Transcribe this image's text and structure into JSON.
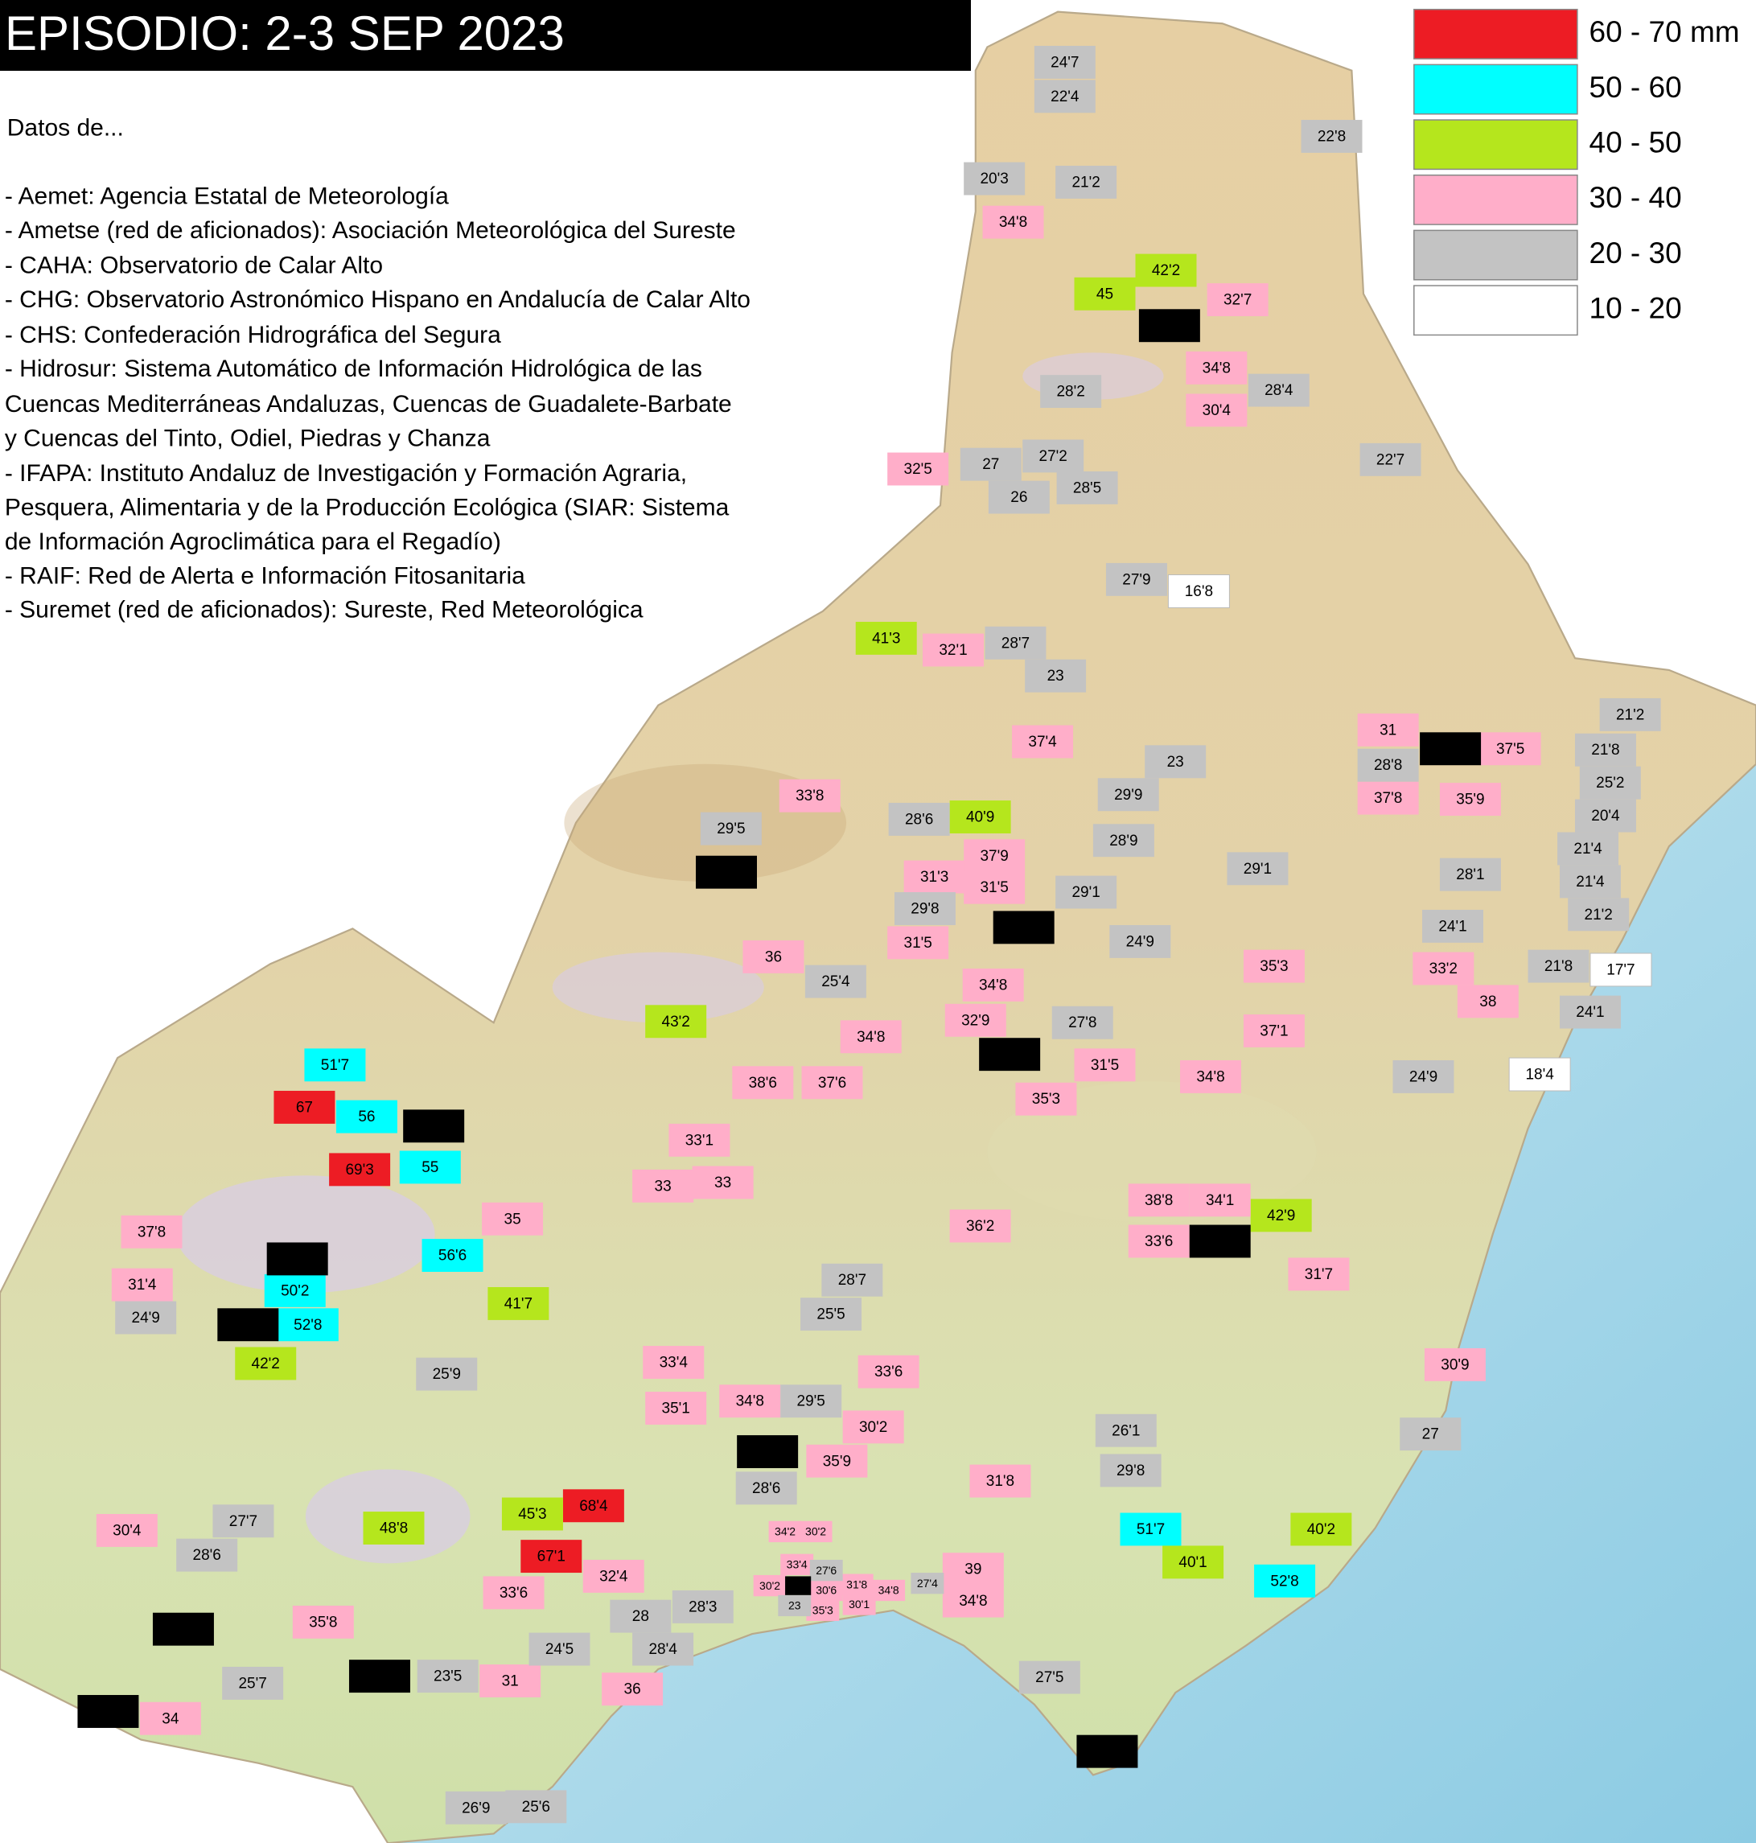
{
  "title": "EPISODIO: 2-3 SEP 2023",
  "sources": {
    "intro": "Datos de...",
    "lines": [
      "- Aemet: Agencia Estatal de Meteorología",
      "- Ametse (red de aficionados): Asociación Meteorológica del Sureste",
      "- CAHA: Observatorio de Calar Alto",
      "- CHG: Observatorio Astronómico Hispano en Andalucía de Calar Alto",
      "- CHS: Confederación Hidrográfica del Segura",
      "- Hidrosur: Sistema Automático de Información Hidrológica de las",
      "  Cuencas Mediterráneas Andaluzas, Cuencas de Guadalete-Barbate",
      "  y Cuencas del Tinto, Odiel, Piedras y Chanza",
      "- IFAPA: Instituto Andaluz de Investigación y Formación Agraria,",
      "  Pesquera, Alimentaria y de la Producción Ecológica (SIAR: Sistema",
      "  de Información Agroclimática para el Regadío)",
      "- RAIF: Red de Alerta e Información Fitosanitaria",
      "- Suremet (red de aficionados): Sureste, Red Meteorológica"
    ]
  },
  "legend": {
    "items": [
      {
        "label": "60 - 70 mm",
        "color": "#ed1c24",
        "stations": [
          "67",
          "69'3",
          "68'4",
          "67'1"
        ]
      },
      {
        "label": "50 - 60",
        "color": "#00ffff",
        "stations": [
          "51'7",
          "56",
          "55",
          "56'6",
          "50'2",
          "52'8",
          "51'7",
          "52'8"
        ]
      },
      {
        "label": "40 - 50",
        "color": "#b5e61d",
        "stations": [
          "42'2",
          "45",
          "41'3",
          "40'9",
          "43'2",
          "42'9",
          "41'7",
          "42'2",
          "45'3",
          "48'8",
          "40'2",
          "40'1"
        ]
      },
      {
        "label": "30 - 40",
        "color": "#ffaec9",
        "stations": [
          "34'8",
          "32'7",
          "34'8",
          "30'4",
          "32'5",
          "32'1",
          "37'4",
          "31",
          "37'5",
          "37'8",
          "35'9",
          "33'8",
          "37'9",
          "31'3",
          "31'5",
          "31'5",
          "36",
          "34'8",
          "32'9",
          "34'8",
          "35'3",
          "33'2",
          "38",
          "37'1",
          "31'5",
          "34'8",
          "38'6",
          "37'6",
          "35'3",
          "33'1",
          "33",
          "33",
          "35",
          "37'8",
          "38'8",
          "34'1",
          "33'6",
          "36'2",
          "31'4",
          "31'7",
          "33'4",
          "33'6",
          "35'1",
          "34'8",
          "30'2",
          "35'9",
          "31'8",
          "30'9",
          "30'4",
          "32'4",
          "33'6",
          "39",
          "34'8",
          "35'8",
          "31",
          "36",
          "34",
          "34'2",
          "30'2",
          "33'4",
          "30'2",
          "30'6",
          "31'8",
          "30'1",
          "35'3",
          "34'8"
        ]
      },
      {
        "label": "20 - 30",
        "color": "#c3c3c3",
        "stations": [
          "24'7",
          "22'4",
          "22'8",
          "20'3",
          "21'2",
          "28'2",
          "28'4",
          "22'7",
          "27",
          "27'2",
          "26",
          "28'5",
          "27'9",
          "28'7",
          "23",
          "23",
          "21'2",
          "21'8",
          "25'2",
          "20'4",
          "21'4",
          "21'4",
          "21'2",
          "28'8",
          "29'9",
          "28'9",
          "29'5",
          "28'6",
          "29'1",
          "28'1",
          "24'1",
          "21'8",
          "24'1",
          "29'1",
          "29'8",
          "24'9",
          "25'4",
          "27'8",
          "24'9",
          "28'7",
          "25'5",
          "24'9",
          "25'9",
          "29'5",
          "26'1",
          "27",
          "29'8",
          "28'6",
          "27'7",
          "28'6",
          "27'6",
          "23",
          "27'4",
          "28",
          "28'3",
          "24'5",
          "28'4",
          "25'7",
          "23'5",
          "27'5",
          "26'9",
          "25'6"
        ]
      },
      {
        "label": "10 - 20",
        "color": "#ffffff",
        "stations": [
          "16'8",
          "17'7",
          "18'4"
        ]
      }
    ]
  }
}
